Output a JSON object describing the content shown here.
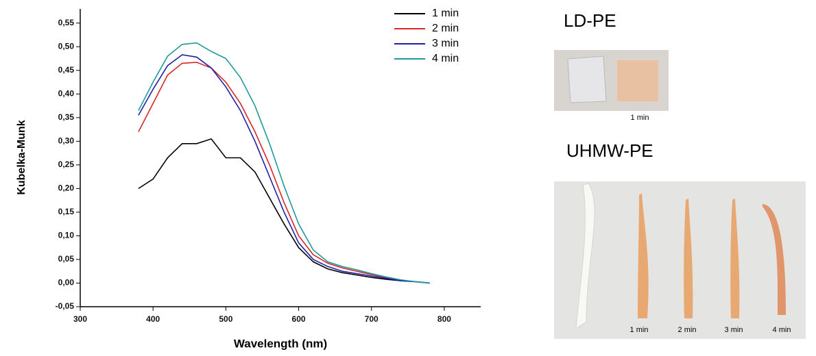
{
  "chart_data": {
    "type": "line",
    "y_label": "Kubelka-Munk",
    "x_label": "Wavelength (nm)",
    "x": [
      380,
      400,
      420,
      440,
      460,
      480,
      500,
      520,
      540,
      560,
      580,
      600,
      620,
      640,
      660,
      680,
      700,
      720,
      740,
      760,
      780
    ],
    "series": [
      {
        "name": "1 min",
        "color": "#000000",
        "values": [
          0.2,
          0.22,
          0.265,
          0.295,
          0.295,
          0.305,
          0.265,
          0.265,
          0.235,
          0.18,
          0.125,
          0.075,
          0.045,
          0.03,
          0.022,
          0.017,
          0.012,
          0.008,
          0.005,
          0.003,
          0.0
        ]
      },
      {
        "name": "2 min",
        "color": "#d62728",
        "values": [
          0.32,
          0.38,
          0.44,
          0.465,
          0.467,
          0.455,
          0.425,
          0.38,
          0.32,
          0.25,
          0.17,
          0.1,
          0.06,
          0.042,
          0.032,
          0.025,
          0.018,
          0.012,
          0.006,
          0.003,
          0.0
        ]
      },
      {
        "name": "3 min",
        "color": "#1f1fa8",
        "values": [
          0.355,
          0.41,
          0.46,
          0.483,
          0.478,
          0.455,
          0.415,
          0.365,
          0.3,
          0.225,
          0.15,
          0.085,
          0.05,
          0.035,
          0.025,
          0.02,
          0.015,
          0.01,
          0.005,
          0.003,
          0.0
        ]
      },
      {
        "name": "4 min",
        "color": "#1f9a9a",
        "values": [
          0.365,
          0.425,
          0.48,
          0.505,
          0.508,
          0.49,
          0.475,
          0.435,
          0.375,
          0.295,
          0.205,
          0.125,
          0.07,
          0.045,
          0.035,
          0.028,
          0.02,
          0.013,
          0.007,
          0.003,
          0.0
        ]
      }
    ],
    "xlim": [
      300,
      850
    ],
    "ylim": [
      -0.05,
      0.58
    ],
    "xticks": [
      300,
      400,
      500,
      600,
      700,
      800
    ],
    "yticks": [
      {
        "value": -0.05,
        "label": "-0,05"
      },
      {
        "value": 0,
        "label": "0,00"
      },
      {
        "value": 0.05,
        "label": "0,05"
      },
      {
        "value": 0.1,
        "label": "0,10"
      },
      {
        "value": 0.15,
        "label": "0,15"
      },
      {
        "value": 0.2,
        "label": "0,20"
      },
      {
        "value": 0.25,
        "label": "0,25"
      },
      {
        "value": 0.3,
        "label": "0,30"
      },
      {
        "value": 0.35,
        "label": "0,35"
      },
      {
        "value": 0.4,
        "label": "0,40"
      },
      {
        "value": 0.45,
        "label": "0,45"
      },
      {
        "value": 0.5,
        "label": "0,50"
      },
      {
        "value": 0.55,
        "label": "0,55"
      }
    ],
    "legend": "upper-right"
  },
  "photos": {
    "ldpe": {
      "title": "LD-PE",
      "caption": "1 min"
    },
    "uhmwpe": {
      "title": "UHMW-PE",
      "captions": [
        "1 min",
        "2 min",
        "3 min",
        "4 min"
      ]
    }
  }
}
